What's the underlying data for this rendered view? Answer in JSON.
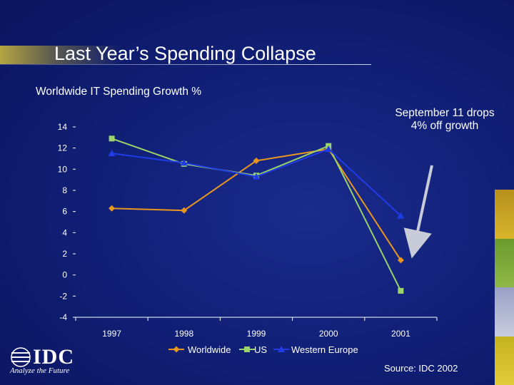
{
  "slide": {
    "title": "Last Year’s Spending Collapse",
    "annotation": "September 11 drops 4% off growth",
    "source": "Source: IDC 2002",
    "logo": {
      "brand": "IDC",
      "tagline": "Analyze the Future"
    }
  },
  "colors": {
    "background": "#0d1a66",
    "worldwide": "#e8961e",
    "us": "#9ad46a",
    "western_europe": "#1f3ce6",
    "title_streak": "#d2be3c"
  },
  "chart_data": {
    "type": "line",
    "title": "Worldwide IT Spending Growth %",
    "xlabel": "",
    "ylabel": "",
    "categories": [
      "1997",
      "1998",
      "1999",
      "2000",
      "2001"
    ],
    "ylim": [
      -4,
      14
    ],
    "yticks": [
      "14",
      "12",
      "10",
      "8",
      "6",
      "4",
      "2",
      "0",
      "-2",
      "-4"
    ],
    "grid": false,
    "legend": "bottom",
    "series": [
      {
        "name": "Worldwide",
        "marker": "diamond",
        "values": [
          6.3,
          6.1,
          10.8,
          11.9,
          1.4
        ]
      },
      {
        "name": "US",
        "marker": "square",
        "values": [
          12.9,
          10.5,
          9.4,
          12.2,
          -1.5
        ]
      },
      {
        "name": "Western Europe",
        "marker": "triangle",
        "values": [
          11.5,
          10.6,
          9.3,
          11.9,
          5.6
        ]
      }
    ]
  }
}
